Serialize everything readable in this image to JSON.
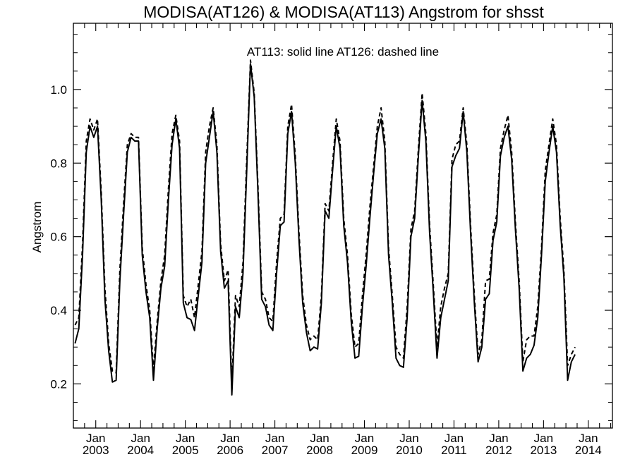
{
  "chart_data": {
    "type": "line",
    "title": "MODISA(AT126) & MODISA(AT113)  Angstrom for shsst",
    "annotation": "AT113: solid line   AT126: dashed line",
    "xlabel": "",
    "ylabel": "Angstrom",
    "xlim": [
      "2002-07-01",
      "2014-07-15"
    ],
    "ylim": [
      0.08,
      1.18
    ],
    "yticks": [
      0.2,
      0.4,
      0.6,
      0.8,
      1.0
    ],
    "ytick_labels": [
      "0.2",
      "0.4",
      "0.6",
      "0.8",
      "1.0"
    ],
    "xtick_month_label": "Jan",
    "xtick_years": [
      "2003",
      "2004",
      "2005",
      "2006",
      "2007",
      "2008",
      "2009",
      "2010",
      "2011",
      "2012",
      "2013",
      "2014"
    ],
    "line_color": "#000000",
    "series": [
      {
        "name": "AT113",
        "style": "solid",
        "points": [
          [
            "2002-07",
            0.31
          ],
          [
            "2002-08",
            0.35
          ],
          [
            "2002-09",
            0.55
          ],
          [
            "2002-10",
            0.83
          ],
          [
            "2002-11",
            0.9
          ],
          [
            "2002-12",
            0.87
          ],
          [
            "2003-01",
            0.9
          ],
          [
            "2003-02",
            0.7
          ],
          [
            "2003-03",
            0.43
          ],
          [
            "2003-04",
            0.29
          ],
          [
            "2003-05",
            0.205
          ],
          [
            "2003-06",
            0.21
          ],
          [
            "2003-07",
            0.48
          ],
          [
            "2003-08",
            0.66
          ],
          [
            "2003-09",
            0.83
          ],
          [
            "2003-10",
            0.87
          ],
          [
            "2003-11",
            0.86
          ],
          [
            "2003-12",
            0.86
          ],
          [
            "2004-01",
            0.55
          ],
          [
            "2004-02",
            0.45
          ],
          [
            "2004-03",
            0.38
          ],
          [
            "2004-04",
            0.21
          ],
          [
            "2004-05",
            0.35
          ],
          [
            "2004-06",
            0.46
          ],
          [
            "2004-07",
            0.52
          ],
          [
            "2004-08",
            0.7
          ],
          [
            "2004-09",
            0.85
          ],
          [
            "2004-10",
            0.92
          ],
          [
            "2004-11",
            0.84
          ],
          [
            "2004-12",
            0.42
          ],
          [
            "2005-01",
            0.38
          ],
          [
            "2005-02",
            0.375
          ],
          [
            "2005-03",
            0.345
          ],
          [
            "2005-04",
            0.44
          ],
          [
            "2005-05",
            0.53
          ],
          [
            "2005-06",
            0.8
          ],
          [
            "2005-07",
            0.87
          ],
          [
            "2005-08",
            0.94
          ],
          [
            "2005-09",
            0.83
          ],
          [
            "2005-10",
            0.56
          ],
          [
            "2005-11",
            0.46
          ],
          [
            "2005-12",
            0.48
          ],
          [
            "2006-01",
            0.17
          ],
          [
            "2006-02",
            0.41
          ],
          [
            "2006-03",
            0.38
          ],
          [
            "2006-04",
            0.5
          ],
          [
            "2006-05",
            0.78
          ],
          [
            "2006-06",
            1.07
          ],
          [
            "2006-07",
            0.98
          ],
          [
            "2006-08",
            0.72
          ],
          [
            "2006-09",
            0.43
          ],
          [
            "2006-10",
            0.41
          ],
          [
            "2006-11",
            0.36
          ],
          [
            "2006-12",
            0.345
          ],
          [
            "2007-01",
            0.5
          ],
          [
            "2007-02",
            0.63
          ],
          [
            "2007-03",
            0.64
          ],
          [
            "2007-04",
            0.88
          ],
          [
            "2007-05",
            0.94
          ],
          [
            "2007-06",
            0.8
          ],
          [
            "2007-07",
            0.59
          ],
          [
            "2007-08",
            0.42
          ],
          [
            "2007-09",
            0.34
          ],
          [
            "2007-10",
            0.29
          ],
          [
            "2007-11",
            0.3
          ],
          [
            "2007-12",
            0.295
          ],
          [
            "2008-01",
            0.42
          ],
          [
            "2008-02",
            0.67
          ],
          [
            "2008-03",
            0.65
          ],
          [
            "2008-04",
            0.78
          ],
          [
            "2008-05",
            0.9
          ],
          [
            "2008-06",
            0.84
          ],
          [
            "2008-07",
            0.63
          ],
          [
            "2008-08",
            0.53
          ],
          [
            "2008-09",
            0.37
          ],
          [
            "2008-10",
            0.27
          ],
          [
            "2008-11",
            0.275
          ],
          [
            "2008-12",
            0.41
          ],
          [
            "2009-01",
            0.52
          ],
          [
            "2009-02",
            0.65
          ],
          [
            "2009-03",
            0.77
          ],
          [
            "2009-04",
            0.88
          ],
          [
            "2009-05",
            0.92
          ],
          [
            "2009-06",
            0.84
          ],
          [
            "2009-07",
            0.55
          ],
          [
            "2009-08",
            0.42
          ],
          [
            "2009-09",
            0.27
          ],
          [
            "2009-10",
            0.25
          ],
          [
            "2009-11",
            0.245
          ],
          [
            "2009-12",
            0.38
          ],
          [
            "2010-01",
            0.6
          ],
          [
            "2010-02",
            0.65
          ],
          [
            "2010-03",
            0.82
          ],
          [
            "2010-04",
            0.97
          ],
          [
            "2010-05",
            0.86
          ],
          [
            "2010-06",
            0.61
          ],
          [
            "2010-07",
            0.45
          ],
          [
            "2010-08",
            0.27
          ],
          [
            "2010-09",
            0.38
          ],
          [
            "2010-10",
            0.43
          ],
          [
            "2010-11",
            0.48
          ],
          [
            "2010-12",
            0.79
          ],
          [
            "2011-01",
            0.82
          ],
          [
            "2011-02",
            0.84
          ],
          [
            "2011-03",
            0.94
          ],
          [
            "2011-04",
            0.83
          ],
          [
            "2011-05",
            0.61
          ],
          [
            "2011-06",
            0.42
          ],
          [
            "2011-07",
            0.26
          ],
          [
            "2011-08",
            0.3
          ],
          [
            "2011-09",
            0.43
          ],
          [
            "2011-10",
            0.445
          ],
          [
            "2011-11",
            0.59
          ],
          [
            "2011-12",
            0.64
          ],
          [
            "2012-01",
            0.82
          ],
          [
            "2012-02",
            0.87
          ],
          [
            "2012-03",
            0.9
          ],
          [
            "2012-04",
            0.81
          ],
          [
            "2012-05",
            0.62
          ],
          [
            "2012-06",
            0.46
          ],
          [
            "2012-07",
            0.235
          ],
          [
            "2012-08",
            0.27
          ],
          [
            "2012-09",
            0.28
          ],
          [
            "2012-10",
            0.305
          ],
          [
            "2012-11",
            0.38
          ],
          [
            "2012-12",
            0.55
          ],
          [
            "2013-01",
            0.75
          ],
          [
            "2013-02",
            0.83
          ],
          [
            "2013-03",
            0.9
          ],
          [
            "2013-04",
            0.83
          ],
          [
            "2013-05",
            0.63
          ],
          [
            "2013-06",
            0.49
          ],
          [
            "2013-07",
            0.21
          ],
          [
            "2013-08",
            0.26
          ],
          [
            "2013-09",
            0.28
          ]
        ]
      },
      {
        "name": "AT126",
        "style": "dashed",
        "points": [
          [
            "2002-07",
            0.36
          ],
          [
            "2002-08",
            0.38
          ],
          [
            "2002-09",
            0.58
          ],
          [
            "2002-10",
            0.86
          ],
          [
            "2002-11",
            0.92
          ],
          [
            "2002-12",
            0.89
          ],
          [
            "2003-01",
            0.92
          ],
          [
            "2003-02",
            0.72
          ],
          [
            "2003-03",
            0.46
          ],
          [
            "2003-04",
            0.31
          ],
          [
            "2003-05",
            0.235
          ],
          [
            "2003-06",
            0.23
          ],
          [
            "2003-07",
            0.51
          ],
          [
            "2003-08",
            0.69
          ],
          [
            "2003-09",
            0.85
          ],
          [
            "2003-10",
            0.88
          ],
          [
            "2003-11",
            0.87
          ],
          [
            "2003-12",
            0.87
          ],
          [
            "2004-01",
            0.57
          ],
          [
            "2004-02",
            0.47
          ],
          [
            "2004-03",
            0.4
          ],
          [
            "2004-04",
            0.24
          ],
          [
            "2004-05",
            0.37
          ],
          [
            "2004-06",
            0.48
          ],
          [
            "2004-07",
            0.55
          ],
          [
            "2004-08",
            0.73
          ],
          [
            "2004-09",
            0.88
          ],
          [
            "2004-10",
            0.93
          ],
          [
            "2004-11",
            0.86
          ],
          [
            "2004-12",
            0.44
          ],
          [
            "2005-01",
            0.41
          ],
          [
            "2005-02",
            0.43
          ],
          [
            "2005-03",
            0.38
          ],
          [
            "2005-04",
            0.47
          ],
          [
            "2005-05",
            0.56
          ],
          [
            "2005-06",
            0.83
          ],
          [
            "2005-07",
            0.9
          ],
          [
            "2005-08",
            0.95
          ],
          [
            "2005-09",
            0.85
          ],
          [
            "2005-10",
            0.58
          ],
          [
            "2005-11",
            0.48
          ],
          [
            "2005-12",
            0.51
          ],
          [
            "2006-01",
            0.2
          ],
          [
            "2006-02",
            0.44
          ],
          [
            "2006-03",
            0.41
          ],
          [
            "2006-04",
            0.53
          ],
          [
            "2006-05",
            0.81
          ],
          [
            "2006-06",
            1.08
          ],
          [
            "2006-07",
            0.99
          ],
          [
            "2006-08",
            0.74
          ],
          [
            "2006-09",
            0.45
          ],
          [
            "2006-10",
            0.43
          ],
          [
            "2006-11",
            0.38
          ],
          [
            "2006-12",
            0.37
          ],
          [
            "2007-01",
            0.53
          ],
          [
            "2007-02",
            0.65
          ],
          [
            "2007-03",
            0.66
          ],
          [
            "2007-04",
            0.9
          ],
          [
            "2007-05",
            0.96
          ],
          [
            "2007-06",
            0.82
          ],
          [
            "2007-07",
            0.61
          ],
          [
            "2007-08",
            0.44
          ],
          [
            "2007-09",
            0.36
          ],
          [
            "2007-10",
            0.32
          ],
          [
            "2007-11",
            0.33
          ],
          [
            "2007-12",
            0.32
          ],
          [
            "2008-01",
            0.44
          ],
          [
            "2008-02",
            0.69
          ],
          [
            "2008-03",
            0.67
          ],
          [
            "2008-04",
            0.8
          ],
          [
            "2008-05",
            0.92
          ],
          [
            "2008-06",
            0.86
          ],
          [
            "2008-07",
            0.65
          ],
          [
            "2008-08",
            0.55
          ],
          [
            "2008-09",
            0.39
          ],
          [
            "2008-10",
            0.3
          ],
          [
            "2008-11",
            0.31
          ],
          [
            "2008-12",
            0.44
          ],
          [
            "2009-01",
            0.55
          ],
          [
            "2009-02",
            0.68
          ],
          [
            "2009-03",
            0.79
          ],
          [
            "2009-04",
            0.9
          ],
          [
            "2009-05",
            0.95
          ],
          [
            "2009-06",
            0.86
          ],
          [
            "2009-07",
            0.57
          ],
          [
            "2009-08",
            0.44
          ],
          [
            "2009-09",
            0.3
          ],
          [
            "2009-10",
            0.28
          ],
          [
            "2009-11",
            0.27
          ],
          [
            "2009-12",
            0.41
          ],
          [
            "2010-01",
            0.62
          ],
          [
            "2010-02",
            0.67
          ],
          [
            "2010-03",
            0.84
          ],
          [
            "2010-04",
            0.99
          ],
          [
            "2010-05",
            0.88
          ],
          [
            "2010-06",
            0.63
          ],
          [
            "2010-07",
            0.47
          ],
          [
            "2010-08",
            0.3
          ],
          [
            "2010-09",
            0.41
          ],
          [
            "2010-10",
            0.46
          ],
          [
            "2010-11",
            0.5
          ],
          [
            "2010-12",
            0.81
          ],
          [
            "2011-01",
            0.85
          ],
          [
            "2011-02",
            0.86
          ],
          [
            "2011-03",
            0.95
          ],
          [
            "2011-04",
            0.85
          ],
          [
            "2011-05",
            0.63
          ],
          [
            "2011-06",
            0.44
          ],
          [
            "2011-07",
            0.28
          ],
          [
            "2011-08",
            0.32
          ],
          [
            "2011-09",
            0.48
          ],
          [
            "2011-10",
            0.485
          ],
          [
            "2011-11",
            0.61
          ],
          [
            "2011-12",
            0.66
          ],
          [
            "2012-01",
            0.84
          ],
          [
            "2012-02",
            0.89
          ],
          [
            "2012-03",
            0.93
          ],
          [
            "2012-04",
            0.83
          ],
          [
            "2012-05",
            0.64
          ],
          [
            "2012-06",
            0.48
          ],
          [
            "2012-07",
            0.26
          ],
          [
            "2012-08",
            0.32
          ],
          [
            "2012-09",
            0.33
          ],
          [
            "2012-10",
            0.33
          ],
          [
            "2012-11",
            0.41
          ],
          [
            "2012-12",
            0.57
          ],
          [
            "2013-01",
            0.78
          ],
          [
            "2013-02",
            0.85
          ],
          [
            "2013-03",
            0.92
          ],
          [
            "2013-04",
            0.85
          ],
          [
            "2013-05",
            0.65
          ],
          [
            "2013-06",
            0.51
          ],
          [
            "2013-07",
            0.25
          ],
          [
            "2013-08",
            0.28
          ],
          [
            "2013-09",
            0.3
          ]
        ]
      }
    ]
  }
}
